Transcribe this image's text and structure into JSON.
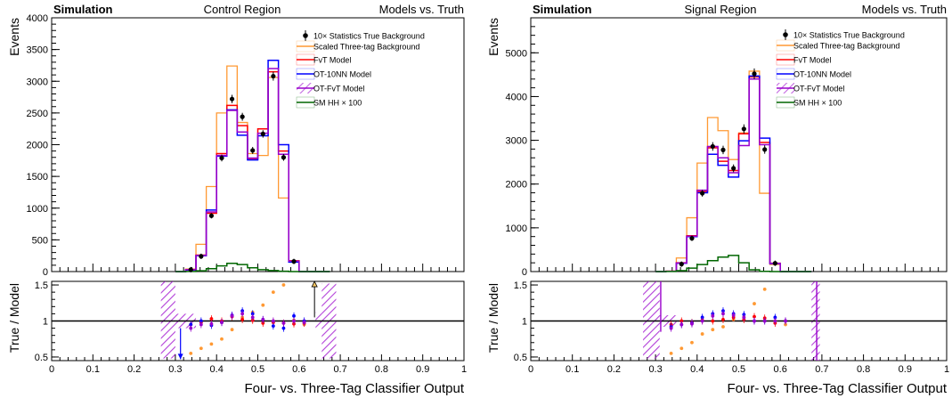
{
  "colors": {
    "data": "#000000",
    "three_tag": "#ff9933",
    "fvt": "#ff0000",
    "ot_10nn": "#0000ff",
    "ot_fvt": "#9900cc",
    "sm_hh": "#006600"
  },
  "chart_data": [
    {
      "type": "histogram",
      "title": "Control Region",
      "left_label": "Simulation",
      "right_label": "Models vs. Truth",
      "xlabel": "Four- vs. Three-Tag Classifier Output",
      "ylabel": "Events",
      "ratio_ylabel": "True / Model",
      "xlim": [
        0,
        1
      ],
      "ylim": [
        0,
        4000
      ],
      "ratio_ylim": [
        0.45,
        1.55
      ],
      "x_ticks": [
        "0",
        "0.1",
        "0.2",
        "0.3",
        "0.4",
        "0.5",
        "0.6",
        "0.7",
        "0.8",
        "0.9",
        "1"
      ],
      "y_ticks": [
        "0",
        "500",
        "1000",
        "1500",
        "2000",
        "2500",
        "3000",
        "3500",
        "4000"
      ],
      "ratio_ticks": [
        "0.5",
        "1",
        "1.5"
      ],
      "bin_edges": [
        0.3,
        0.325,
        0.35,
        0.375,
        0.4,
        0.425,
        0.45,
        0.475,
        0.5,
        0.525,
        0.55,
        0.575,
        0.6,
        0.625,
        0.65,
        0.675
      ],
      "legend": {
        "position": "top-right",
        "entries": [
          "10× Statistics True Background",
          "Scaled Three-tag Background",
          "FvT Model",
          "OT-10NN Model",
          "OT-FvT Model",
          "SM HH × 100"
        ]
      },
      "series": [
        {
          "name": "10× Statistics True Background",
          "style": "points",
          "x": [
            0.3125,
            0.3375,
            0.3625,
            0.3875,
            0.4125,
            0.4375,
            0.4625,
            0.4875,
            0.5125,
            0.5375,
            0.5625,
            0.5875,
            0.6125,
            0.6375,
            0.6625
          ],
          "values": [
            0,
            30,
            240,
            880,
            1790,
            2720,
            2440,
            1910,
            2170,
            3080,
            1800,
            160,
            0,
            0,
            0
          ]
        },
        {
          "name": "Scaled Three-tag Background",
          "style": "step",
          "values": [
            0,
            40,
            430,
            1340,
            2500,
            3240,
            2350,
            1860,
            1830,
            3060,
            1160,
            170,
            0,
            0,
            0
          ]
        },
        {
          "name": "FvT Model",
          "style": "step",
          "values": [
            0,
            30,
            260,
            920,
            1860,
            2620,
            2300,
            1780,
            2250,
            3150,
            1900,
            170,
            0,
            0,
            0
          ]
        },
        {
          "name": "OT-10NN Model",
          "style": "step",
          "values": [
            0,
            25,
            250,
            970,
            1820,
            2550,
            2150,
            1760,
            2140,
            3330,
            2000,
            150,
            0,
            0,
            0
          ]
        },
        {
          "name": "OT-FvT Model",
          "style": "step",
          "values": [
            0,
            30,
            255,
            940,
            1830,
            2540,
            2200,
            1790,
            2180,
            3200,
            1850,
            165,
            0,
            0,
            0
          ]
        },
        {
          "name": "SM HH × 100",
          "style": "step",
          "values": [
            0,
            2,
            12,
            45,
            90,
            130,
            110,
            60,
            30,
            15,
            5,
            0,
            0,
            0,
            0
          ]
        }
      ],
      "ratio_points": [
        {
          "name": "Scaled Three-tag Background",
          "x": [
            0.3375,
            0.3625,
            0.3875,
            0.4125,
            0.4375,
            0.4625,
            0.4875,
            0.5125,
            0.5375,
            0.5625,
            0.5875,
            0.6125
          ],
          "values": [
            0.55,
            0.62,
            0.68,
            0.75,
            0.88,
            1.05,
            1.12,
            1.22,
            1.4,
            1.5,
            1.01,
            0.95
          ]
        },
        {
          "name": "FvT Model",
          "x": [
            0.3375,
            0.3625,
            0.3875,
            0.4125,
            0.4375,
            0.4625,
            0.4875,
            0.5125,
            0.5375,
            0.5625,
            0.5875,
            0.6125
          ],
          "values": [
            0.95,
            0.98,
            1.03,
            1.0,
            1.06,
            1.02,
            1.01,
            0.97,
            0.98,
            0.97,
            0.96,
            0.97
          ]
        },
        {
          "name": "OT-10NN Model",
          "x": [
            0.3375,
            0.3625,
            0.3875,
            0.4125,
            0.4375,
            0.4625,
            0.4875,
            0.5125,
            0.5375,
            0.5625,
            0.5875,
            0.6125
          ],
          "values": [
            0.95,
            1.0,
            0.94,
            0.98,
            1.08,
            1.14,
            1.1,
            1.02,
            0.93,
            0.9,
            1.07,
            1.0
          ]
        },
        {
          "name": "OT-FvT Model",
          "x": [
            0.3375,
            0.3625,
            0.3875,
            0.4125,
            0.4375,
            0.4625,
            0.4875,
            0.5125,
            0.5375,
            0.5625,
            0.5875,
            0.6125
          ],
          "values": [
            0.9,
            0.95,
            0.96,
            0.98,
            1.07,
            1.1,
            1.05,
            1.02,
            1.0,
            0.97,
            1.0,
            0.98
          ]
        }
      ],
      "ratio_markers": {
        "x_down": 0.3125,
        "x_up": 0.6375
      }
    },
    {
      "type": "histogram",
      "title": "Signal Region",
      "left_label": "Simulation",
      "right_label": "Models vs. Truth",
      "xlabel": "Four- vs. Three-Tag Classifier Output",
      "ylabel": "Events",
      "ratio_ylabel": "True / Model",
      "xlim": [
        0,
        1
      ],
      "ylim": [
        0,
        5800
      ],
      "ratio_ylim": [
        0.45,
        1.55
      ],
      "x_ticks": [
        "0",
        "0.1",
        "0.2",
        "0.3",
        "0.4",
        "0.5",
        "0.6",
        "0.7",
        "0.8",
        "0.9",
        "1"
      ],
      "y_ticks": [
        "0",
        "1000",
        "2000",
        "3000",
        "4000",
        "5000"
      ],
      "ratio_ticks": [
        "0.5",
        "1",
        "1.5"
      ],
      "bin_edges": [
        0.3,
        0.325,
        0.35,
        0.375,
        0.4,
        0.425,
        0.45,
        0.475,
        0.5,
        0.525,
        0.55,
        0.575,
        0.6,
        0.625,
        0.65,
        0.675
      ],
      "legend": {
        "position": "top-right",
        "entries": [
          "10× Statistics True Background",
          "Scaled Three-tag Background",
          "FvT Model",
          "OT-10NN Model",
          "OT-FvT Model",
          "SM HH × 100"
        ]
      },
      "series": [
        {
          "name": "10× Statistics True Background",
          "style": "points",
          "x": [
            0.3125,
            0.3375,
            0.3625,
            0.3875,
            0.4125,
            0.4375,
            0.4625,
            0.4875,
            0.5125,
            0.5375,
            0.5625,
            0.5875,
            0.6125,
            0.6375,
            0.6625
          ],
          "values": [
            0,
            0,
            170,
            760,
            1790,
            2860,
            2780,
            2360,
            3260,
            4520,
            2790,
            190,
            0,
            0,
            0
          ]
        },
        {
          "name": "Scaled Three-tag Background",
          "style": "step",
          "values": [
            0,
            10,
            310,
            1230,
            2480,
            3520,
            3220,
            2560,
            3170,
            4580,
            1790,
            160,
            0,
            0,
            0
          ]
        },
        {
          "name": "FvT Model",
          "style": "step",
          "values": [
            0,
            8,
            200,
            820,
            1830,
            2830,
            2520,
            2310,
            3150,
            4450,
            2950,
            190,
            0,
            0,
            0
          ]
        },
        {
          "name": "OT-10NN Model",
          "style": "step",
          "values": [
            0,
            6,
            190,
            800,
            1800,
            2680,
            2430,
            2160,
            2990,
            4470,
            3050,
            180,
            0,
            0,
            0
          ]
        },
        {
          "name": "OT-FvT Model",
          "style": "step",
          "values": [
            0,
            7,
            195,
            810,
            1860,
            2860,
            2600,
            2260,
            2880,
            4400,
            2900,
            185,
            0,
            0,
            0
          ]
        },
        {
          "name": "SM HH × 100",
          "style": "step",
          "values": [
            0,
            3,
            20,
            80,
            160,
            250,
            330,
            370,
            200,
            40,
            5,
            0,
            0,
            0,
            0
          ]
        }
      ],
      "ratio_points": [
        {
          "name": "Scaled Three-tag Background",
          "x": [
            0.3375,
            0.3625,
            0.3875,
            0.4125,
            0.4375,
            0.4625,
            0.4875,
            0.5125,
            0.5375,
            0.5625,
            0.5875,
            0.6125
          ],
          "values": [
            0.55,
            0.62,
            0.7,
            0.82,
            0.88,
            0.92,
            1.02,
            1.05,
            1.24,
            1.44,
            1.0,
            0.95
          ]
        },
        {
          "name": "FvT Model",
          "x": [
            0.3375,
            0.3625,
            0.3875,
            0.4125,
            0.4375,
            0.4625,
            0.4875,
            0.5125,
            0.5375,
            0.5625,
            0.5875,
            0.6125
          ],
          "values": [
            0.95,
            1.0,
            0.98,
            1.01,
            1.0,
            1.02,
            1.05,
            1.02,
            1.06,
            1.04,
            0.97,
            1.0
          ]
        },
        {
          "name": "OT-10NN Model",
          "x": [
            0.3375,
            0.3625,
            0.3875,
            0.4125,
            0.4375,
            0.4625,
            0.4875,
            0.5125,
            0.5375,
            0.5625,
            0.5875,
            0.6125
          ],
          "values": [
            0.92,
            0.95,
            0.97,
            1.05,
            1.1,
            1.14,
            1.1,
            1.09,
            1.0,
            1.0,
            1.05,
            1.0
          ]
        },
        {
          "name": "OT-FvT Model",
          "x": [
            0.3375,
            0.3625,
            0.3875,
            0.4125,
            0.4375,
            0.4625,
            0.4875,
            0.5125,
            0.5375,
            0.5625,
            0.5875,
            0.6125
          ],
          "values": [
            0.9,
            0.95,
            0.96,
            1.0,
            1.07,
            1.1,
            1.08,
            1.05,
            1.0,
            1.0,
            1.0,
            1.0
          ]
        }
      ],
      "ratio_markers": {
        "x_down": null,
        "x_up": null
      }
    }
  ]
}
